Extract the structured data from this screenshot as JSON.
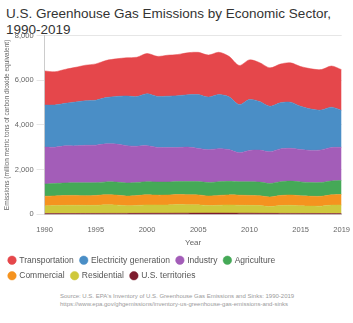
{
  "chart_data": {
    "type": "stacked_area",
    "title": "U.S. Greenhouse Gas Emissions by Economic Sector, 1990-2019",
    "x_label": "Year",
    "y_label": "Emissions (million metric tons of carbon dioxide equivalent)",
    "source": [
      "Source: U.S. EPA's Inventory of U.S. Greenhouse Gas Emissions and Sinks: 1990-2019",
      "https://www.epa.gov/ghgemissions/inventory-us-greenhouse-gas-emissions-and-sinks"
    ],
    "x": [
      1990,
      1991,
      1992,
      1993,
      1994,
      1995,
      1996,
      1997,
      1998,
      1999,
      2000,
      2001,
      2002,
      2003,
      2004,
      2005,
      2006,
      2007,
      2008,
      2009,
      2010,
      2011,
      2012,
      2013,
      2014,
      2015,
      2016,
      2017,
      2018,
      2019
    ],
    "xlim": [
      1990,
      2019
    ],
    "xticks": [
      1990,
      1995,
      2000,
      2005,
      2010,
      2015,
      2019
    ],
    "ylim": [
      0,
      8000
    ],
    "yticks": [
      0,
      {
        "value": 2000,
        "label": "2,000"
      },
      {
        "value": 4000,
        "label": "4,000"
      },
      {
        "value": 6000,
        "label": "6,000"
      },
      {
        "value": 8000,
        "label": "8,000"
      }
    ],
    "stacked": true,
    "grid": "y",
    "legend": "bottom",
    "series": [
      {
        "name": "Transportation",
        "color": "#e5474b",
        "values": [
          1526,
          1485,
          1520,
          1550,
          1590,
          1620,
          1660,
          1680,
          1710,
          1760,
          1800,
          1790,
          1830,
          1840,
          1880,
          1890,
          1880,
          1890,
          1810,
          1750,
          1770,
          1740,
          1720,
          1730,
          1760,
          1780,
          1800,
          1810,
          1840,
          1820
        ]
      },
      {
        "name": "Electricity generation",
        "color": "#4a8ec6",
        "values": [
          1880,
          1890,
          1900,
          1960,
          1990,
          2010,
          2070,
          2130,
          2220,
          2220,
          2320,
          2280,
          2300,
          2320,
          2340,
          2410,
          2350,
          2420,
          2360,
          2150,
          2280,
          2170,
          2030,
          2060,
          2060,
          1930,
          1850,
          1780,
          1800,
          1650
        ]
      },
      {
        "name": "Industry",
        "color": "#a35db8",
        "values": [
          1650,
          1620,
          1660,
          1650,
          1680,
          1680,
          1700,
          1700,
          1670,
          1620,
          1610,
          1550,
          1540,
          1520,
          1540,
          1480,
          1470,
          1480,
          1420,
          1300,
          1400,
          1430,
          1420,
          1470,
          1470,
          1450,
          1440,
          1460,
          1500,
          1480
        ]
      },
      {
        "name": "Agriculture",
        "color": "#45a957",
        "values": [
          550,
          555,
          560,
          565,
          575,
          570,
          575,
          580,
          585,
          585,
          590,
          585,
          580,
          580,
          590,
          595,
          600,
          610,
          605,
          600,
          610,
          610,
          605,
          615,
          620,
          620,
          610,
          615,
          620,
          630
        ]
      },
      {
        "name": "Commercial",
        "color": "#f5931f",
        "values": [
          430,
          435,
          440,
          440,
          430,
          440,
          450,
          445,
          430,
          440,
          450,
          440,
          445,
          450,
          450,
          445,
          430,
          440,
          450,
          450,
          445,
          440,
          430,
          450,
          460,
          450,
          440,
          440,
          460,
          470
        ]
      },
      {
        "name": "Residential",
        "color": "#cfc83c",
        "values": [
          345,
          355,
          365,
          370,
          365,
          365,
          385,
          375,
          345,
          355,
          375,
          370,
          370,
          385,
          375,
          370,
          335,
          350,
          365,
          355,
          350,
          345,
          300,
          350,
          365,
          340,
          330,
          330,
          375,
          380
        ]
      },
      {
        "name": "U.S. territories",
        "color": "#7d1c2e",
        "values": [
          35,
          38,
          40,
          40,
          42,
          42,
          44,
          45,
          45,
          47,
          50,
          52,
          52,
          55,
          55,
          58,
          60,
          60,
          58,
          55,
          55,
          50,
          48,
          45,
          43,
          42,
          42,
          40,
          40,
          40
        ]
      }
    ]
  }
}
